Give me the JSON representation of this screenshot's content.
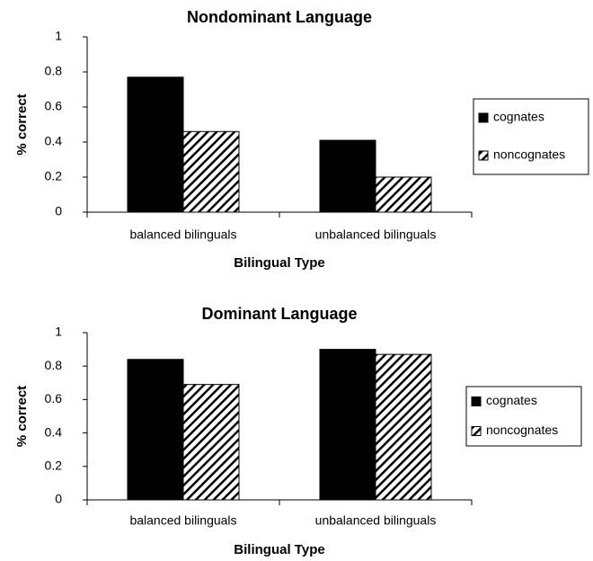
{
  "chart_data": [
    {
      "type": "bar",
      "title": "Nondominant Language",
      "y_label": "% correct",
      "x_label": "Bilingual Type",
      "categories": [
        "balanced bilinguals",
        "unbalanced bilinguals"
      ],
      "series": [
        {
          "name": "cognates",
          "color": "#000000",
          "pattern": "solid",
          "values": [
            0.77,
            0.41
          ]
        },
        {
          "name": "noncognates",
          "color": "#000000",
          "pattern": "hatch",
          "values": [
            0.46,
            0.2
          ]
        }
      ],
      "ylim": [
        0,
        1
      ],
      "yticks": [
        0,
        0.2,
        0.4,
        0.6,
        0.8,
        1
      ],
      "grid": false,
      "legend": "right"
    },
    {
      "type": "bar",
      "title": "Dominant Language",
      "y_label": "% correct",
      "x_label": "Bilingual Type",
      "categories": [
        "balanced bilinguals",
        "unbalanced bilinguals"
      ],
      "series": [
        {
          "name": "cognates",
          "color": "#000000",
          "pattern": "solid",
          "values": [
            0.84,
            0.9
          ]
        },
        {
          "name": "noncognates",
          "color": "#000000",
          "pattern": "hatch",
          "values": [
            0.69,
            0.87
          ]
        }
      ],
      "ylim": [
        0,
        1
      ],
      "yticks": [
        0,
        0.2,
        0.4,
        0.6,
        0.8,
        1
      ],
      "grid": false,
      "legend": "right"
    }
  ]
}
